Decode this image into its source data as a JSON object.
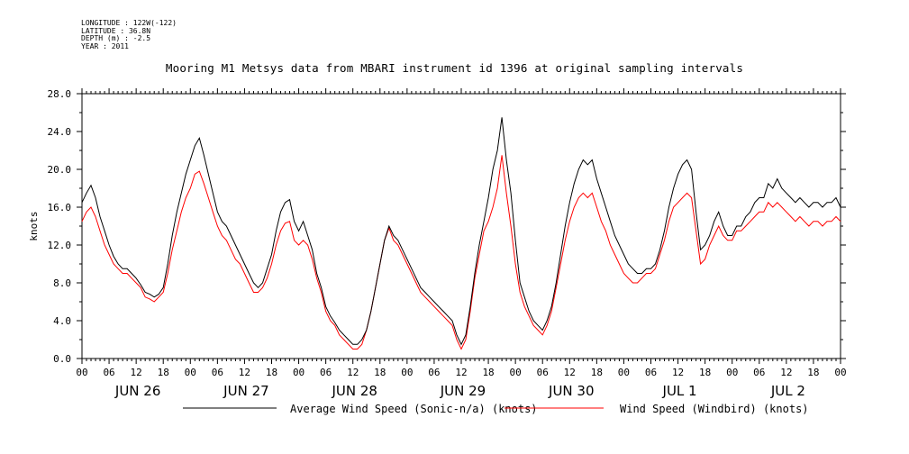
{
  "header": {
    "meta_lines": [
      "LONGITUDE : 122W(-122)",
      "LATITUDE : 36.8N",
      "DEPTH (m) : -2.5",
      "YEAR : 2011"
    ],
    "title": "Mooring M1 Metsys data from MBARI instrument id 1396 at original sampling intervals"
  },
  "chart_data": {
    "type": "line",
    "title": "Mooring M1 Metsys data from MBARI instrument id 1396 at original sampling intervals",
    "ylabel": "knots",
    "xlabel": "",
    "ylim": [
      0,
      28
    ],
    "y_ticks": [
      "0.0",
      "4.0",
      "8.0",
      "12.0",
      "16.0",
      "20.0",
      "24.0",
      "28.0"
    ],
    "x_range_hours": [
      0,
      168
    ],
    "x_tick_labels": [
      "00",
      "06",
      "12",
      "18",
      "00",
      "06",
      "12",
      "18",
      "00",
      "06",
      "12",
      "18",
      "00",
      "06",
      "12",
      "18",
      "00",
      "06",
      "12",
      "18",
      "00",
      "06",
      "12",
      "18",
      "00",
      "06",
      "12",
      "18",
      "00"
    ],
    "day_labels": [
      "JUN 26",
      "JUN 27",
      "JUN 28",
      "JUN 29",
      "JUN 30",
      "JUL  1",
      "JUL  2"
    ],
    "grid": false,
    "legend_position": "bottom",
    "series": [
      {
        "name": "Average Wind Speed (Sonic-n/a) (knots)",
        "color": "#000000",
        "x": [
          0,
          1,
          2,
          3,
          4,
          5,
          6,
          7,
          8,
          9,
          10,
          11,
          12,
          13,
          14,
          15,
          16,
          17,
          18,
          19,
          20,
          21,
          22,
          23,
          24,
          25,
          26,
          27,
          28,
          29,
          30,
          31,
          32,
          33,
          34,
          35,
          36,
          37,
          38,
          39,
          40,
          41,
          42,
          43,
          44,
          45,
          46,
          47,
          48,
          49,
          50,
          51,
          52,
          53,
          54,
          55,
          56,
          57,
          58,
          59,
          60,
          61,
          62,
          63,
          64,
          65,
          66,
          67,
          68,
          69,
          70,
          71,
          72,
          73,
          74,
          75,
          76,
          77,
          78,
          79,
          80,
          81,
          82,
          83,
          84,
          85,
          86,
          87,
          88,
          89,
          90,
          91,
          92,
          93,
          94,
          95,
          96,
          97,
          98,
          99,
          100,
          101,
          102,
          103,
          104,
          105,
          106,
          107,
          108,
          109,
          110,
          111,
          112,
          113,
          114,
          115,
          116,
          117,
          118,
          119,
          120,
          121,
          122,
          123,
          124,
          125,
          126,
          127,
          128,
          129,
          130,
          131,
          132,
          133,
          134,
          135,
          136,
          137,
          138,
          139,
          140,
          141,
          142,
          143,
          144,
          145,
          146,
          147,
          148,
          149,
          150,
          151,
          152,
          153,
          154,
          155,
          156,
          157,
          158,
          159,
          160,
          161,
          162,
          163,
          164,
          165,
          166,
          167,
          168
        ],
        "y": [
          16.5,
          17.5,
          18.3,
          17.0,
          15.0,
          13.5,
          12.0,
          10.8,
          10.0,
          9.5,
          9.5,
          9.0,
          8.5,
          7.8,
          7.0,
          6.8,
          6.5,
          6.8,
          7.5,
          10.0,
          13.0,
          15.5,
          17.5,
          19.5,
          21.0,
          22.5,
          23.3,
          21.5,
          19.5,
          17.5,
          15.5,
          14.5,
          14.0,
          13.0,
          12.0,
          11.0,
          10.0,
          9.0,
          8.0,
          7.5,
          8.0,
          9.5,
          11.0,
          13.5,
          15.5,
          16.5,
          16.8,
          14.5,
          13.5,
          14.5,
          13.0,
          11.5,
          9.0,
          7.5,
          5.5,
          4.5,
          3.8,
          3.0,
          2.5,
          2.0,
          1.5,
          1.5,
          2.0,
          3.0,
          5.0,
          7.5,
          10.0,
          12.5,
          14.0,
          13.0,
          12.5,
          11.5,
          10.5,
          9.5,
          8.5,
          7.5,
          7.0,
          6.5,
          6.0,
          5.5,
          5.0,
          4.5,
          4.0,
          2.5,
          1.5,
          2.5,
          5.5,
          9.0,
          12.0,
          14.5,
          17.0,
          20.0,
          22.0,
          25.5,
          21.0,
          17.5,
          12.5,
          8.0,
          6.5,
          5.0,
          4.0,
          3.5,
          3.0,
          4.0,
          5.5,
          8.0,
          11.0,
          14.0,
          16.5,
          18.5,
          20.0,
          21.0,
          20.5,
          21.0,
          19.0,
          17.5,
          16.0,
          14.5,
          13.0,
          12.0,
          11.0,
          10.0,
          9.5,
          9.0,
          9.0,
          9.5,
          9.5,
          10.0,
          11.5,
          13.5,
          16.0,
          18.0,
          19.5,
          20.5,
          21.0,
          20.0,
          15.5,
          11.5,
          12.0,
          13.0,
          14.5,
          15.5,
          14.0,
          13.0,
          13.0,
          14.0,
          14.0,
          15.0,
          15.5,
          16.5,
          17.0,
          17.0,
          18.5,
          18.0,
          19.0,
          18.0,
          17.5,
          17.0,
          16.5,
          17.0,
          16.5,
          16.0,
          16.5,
          16.5,
          16.0,
          16.5,
          16.5,
          17.0,
          16.0
        ]
      },
      {
        "name": "Wind Speed (Windbird) (knots)",
        "color": "#ff0000",
        "x": [
          0,
          1,
          2,
          3,
          4,
          5,
          6,
          7,
          8,
          9,
          10,
          11,
          12,
          13,
          14,
          15,
          16,
          17,
          18,
          19,
          20,
          21,
          22,
          23,
          24,
          25,
          26,
          27,
          28,
          29,
          30,
          31,
          32,
          33,
          34,
          35,
          36,
          37,
          38,
          39,
          40,
          41,
          42,
          43,
          44,
          45,
          46,
          47,
          48,
          49,
          50,
          51,
          52,
          53,
          54,
          55,
          56,
          57,
          58,
          59,
          60,
          61,
          62,
          63,
          64,
          65,
          66,
          67,
          68,
          69,
          70,
          71,
          72,
          73,
          74,
          75,
          76,
          77,
          78,
          79,
          80,
          81,
          82,
          83,
          84,
          85,
          86,
          87,
          88,
          89,
          90,
          91,
          92,
          93,
          94,
          95,
          96,
          97,
          98,
          99,
          100,
          101,
          102,
          103,
          104,
          105,
          106,
          107,
          108,
          109,
          110,
          111,
          112,
          113,
          114,
          115,
          116,
          117,
          118,
          119,
          120,
          121,
          122,
          123,
          124,
          125,
          126,
          127,
          128,
          129,
          130,
          131,
          132,
          133,
          134,
          135,
          136,
          137,
          138,
          139,
          140,
          141,
          142,
          143,
          144,
          145,
          146,
          147,
          148,
          149,
          150,
          151,
          152,
          153,
          154,
          155,
          156,
          157,
          158,
          159,
          160,
          161,
          162,
          163,
          164,
          165,
          166,
          167,
          168
        ],
        "y": [
          14.5,
          15.5,
          16.0,
          15.0,
          13.5,
          12.0,
          11.0,
          10.0,
          9.5,
          9.0,
          9.0,
          8.5,
          8.0,
          7.5,
          6.5,
          6.3,
          6.0,
          6.5,
          7.0,
          9.0,
          11.5,
          13.5,
          15.5,
          17.0,
          18.0,
          19.5,
          19.8,
          18.5,
          17.0,
          15.5,
          14.0,
          13.0,
          12.5,
          11.5,
          10.5,
          10.0,
          9.0,
          8.0,
          7.0,
          7.0,
          7.5,
          8.5,
          10.0,
          12.0,
          13.5,
          14.3,
          14.5,
          12.5,
          12.0,
          12.5,
          12.0,
          10.5,
          8.5,
          7.0,
          5.0,
          4.0,
          3.5,
          2.5,
          2.0,
          1.5,
          1.0,
          1.0,
          1.5,
          3.0,
          5.0,
          7.5,
          10.0,
          12.5,
          13.8,
          12.5,
          12.0,
          11.0,
          10.0,
          9.0,
          8.0,
          7.0,
          6.5,
          6.0,
          5.5,
          5.0,
          4.5,
          4.0,
          3.5,
          2.0,
          1.0,
          2.0,
          5.0,
          8.5,
          11.0,
          13.5,
          14.5,
          16.0,
          18.0,
          21.5,
          17.5,
          14.0,
          10.0,
          7.0,
          5.5,
          4.5,
          3.5,
          3.0,
          2.5,
          3.5,
          5.0,
          7.5,
          10.0,
          12.5,
          14.5,
          16.0,
          17.0,
          17.5,
          17.0,
          17.5,
          16.0,
          14.5,
          13.5,
          12.0,
          11.0,
          10.0,
          9.0,
          8.5,
          8.0,
          8.0,
          8.5,
          9.0,
          9.0,
          9.5,
          11.0,
          12.5,
          14.5,
          16.0,
          16.5,
          17.0,
          17.5,
          17.0,
          13.5,
          10.0,
          10.5,
          12.0,
          13.0,
          14.0,
          13.0,
          12.5,
          12.5,
          13.5,
          13.5,
          14.0,
          14.5,
          15.0,
          15.5,
          15.5,
          16.5,
          16.0,
          16.5,
          16.0,
          15.5,
          15.0,
          14.5,
          15.0,
          14.5,
          14.0,
          14.5,
          14.5,
          14.0,
          14.5,
          14.5,
          15.0,
          14.5
        ]
      }
    ]
  }
}
